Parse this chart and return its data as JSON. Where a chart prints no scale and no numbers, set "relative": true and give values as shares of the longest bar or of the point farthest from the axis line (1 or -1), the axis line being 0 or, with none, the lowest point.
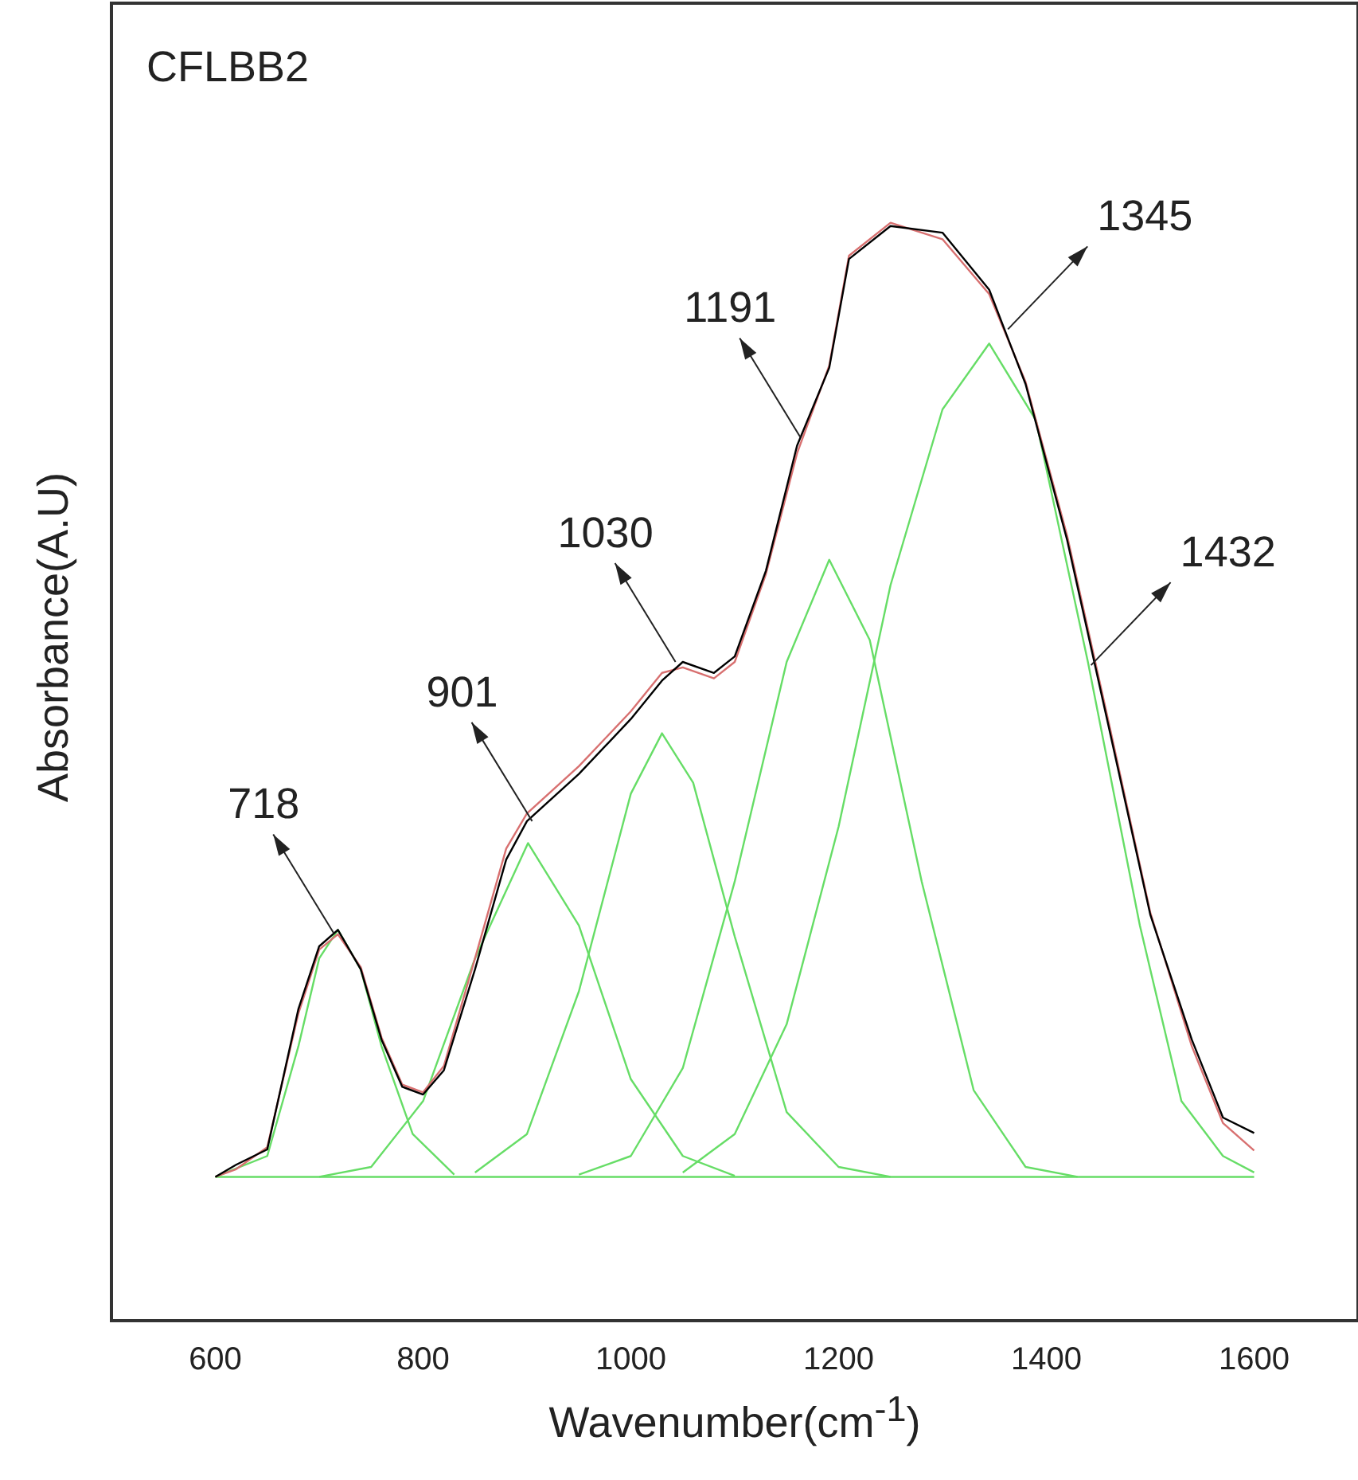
{
  "chart_data": {
    "type": "line",
    "xlabel": "Wavenumber(cm$^{-1}$)",
    "ylabel": "Absorbance(A.U)",
    "relative": true,
    "xlim": [
      500,
      1700
    ],
    "xticks": [
      600,
      800,
      1000,
      1200,
      1400,
      1600
    ],
    "tick_labels": "x",
    "grid": false,
    "legend": false,
    "marker": "none",
    "line_style": "solid",
    "series": [
      {
        "color": "#000000",
        "x": [
          600,
          620,
          650,
          680,
          700,
          718,
          740,
          760,
          780,
          800,
          820,
          850,
          880,
          900,
          950,
          1000,
          1030,
          1050,
          1080,
          1100,
          1130,
          1160,
          1191,
          1210,
          1250,
          1300,
          1345,
          1380,
          1420,
          1460,
          1500,
          1540,
          1570,
          1600
        ],
        "values": [
          0.131,
          0.142,
          0.156,
          0.284,
          0.341,
          0.356,
          0.32,
          0.256,
          0.213,
          0.206,
          0.228,
          0.32,
          0.42,
          0.455,
          0.498,
          0.548,
          0.583,
          0.6,
          0.59,
          0.605,
          0.683,
          0.797,
          0.868,
          0.967,
          0.997,
          0.991,
          0.939,
          0.853,
          0.711,
          0.541,
          0.37,
          0.256,
          0.185,
          0.171
        ]
      },
      {
        "color": "#d87070",
        "x": [
          600,
          620,
          650,
          680,
          700,
          718,
          740,
          760,
          780,
          800,
          820,
          850,
          880,
          900,
          950,
          1000,
          1030,
          1050,
          1080,
          1100,
          1130,
          1160,
          1191,
          1210,
          1250,
          1300,
          1345,
          1380,
          1420,
          1460,
          1500,
          1540,
          1570,
          1600
        ],
        "values": [
          0.131,
          0.138,
          0.158,
          0.28,
          0.338,
          0.352,
          0.322,
          0.258,
          0.215,
          0.208,
          0.232,
          0.33,
          0.43,
          0.462,
          0.505,
          0.555,
          0.59,
          0.595,
          0.585,
          0.6,
          0.68,
          0.79,
          0.87,
          0.97,
          1,
          0.985,
          0.935,
          0.855,
          0.715,
          0.545,
          0.372,
          0.25,
          0.18,
          0.155
        ]
      },
      {
        "color": "#66dd66",
        "x": [
          600,
          1600
        ],
        "values": [
          0.131,
          0.131
        ]
      },
      {
        "color": "#66dd66",
        "x": [
          600,
          650,
          680,
          700,
          718,
          740,
          760,
          790,
          830
        ],
        "values": [
          0.131,
          0.15,
          0.25,
          0.33,
          0.356,
          0.32,
          0.25,
          0.17,
          0.133
        ]
      },
      {
        "color": "#66dd66",
        "x": [
          700,
          750,
          800,
          850,
          901,
          950,
          1000,
          1050,
          1100
        ],
        "values": [
          0.131,
          0.14,
          0.2,
          0.33,
          0.435,
          0.36,
          0.22,
          0.15,
          0.132
        ]
      },
      {
        "color": "#66dd66",
        "x": [
          850,
          900,
          950,
          1000,
          1030,
          1060,
          1100,
          1150,
          1200,
          1250
        ],
        "values": [
          0.135,
          0.17,
          0.3,
          0.48,
          0.535,
          0.49,
          0.35,
          0.19,
          0.14,
          0.131
        ]
      },
      {
        "color": "#66dd66",
        "x": [
          950,
          1000,
          1050,
          1100,
          1150,
          1191,
          1230,
          1280,
          1330,
          1380,
          1430
        ],
        "values": [
          0.133,
          0.15,
          0.23,
          0.4,
          0.6,
          0.693,
          0.62,
          0.4,
          0.21,
          0.14,
          0.131
        ]
      },
      {
        "color": "#66dd66",
        "x": [
          1050,
          1100,
          1150,
          1200,
          1250,
          1300,
          1345,
          1390,
          1440,
          1490,
          1530,
          1570,
          1600
        ],
        "values": [
          0.135,
          0.17,
          0.27,
          0.45,
          0.67,
          0.83,
          0.89,
          0.82,
          0.6,
          0.36,
          0.2,
          0.15,
          0.135
        ]
      }
    ],
    "annotations": [
      "CFLBB2",
      {
        "text": "718",
        "x": 714,
        "y": 0.353
      },
      {
        "text": "901",
        "x": 905,
        "y": 0.455
      },
      {
        "text": "1030",
        "x": 1043,
        "y": 0.6
      },
      {
        "text": "1191",
        "x": 1163,
        "y": 0.805
      },
      {
        "text": "1345",
        "x": 1363,
        "y": 0.903
      },
      {
        "text": "1432",
        "x": 1443,
        "y": 0.597
      }
    ]
  }
}
